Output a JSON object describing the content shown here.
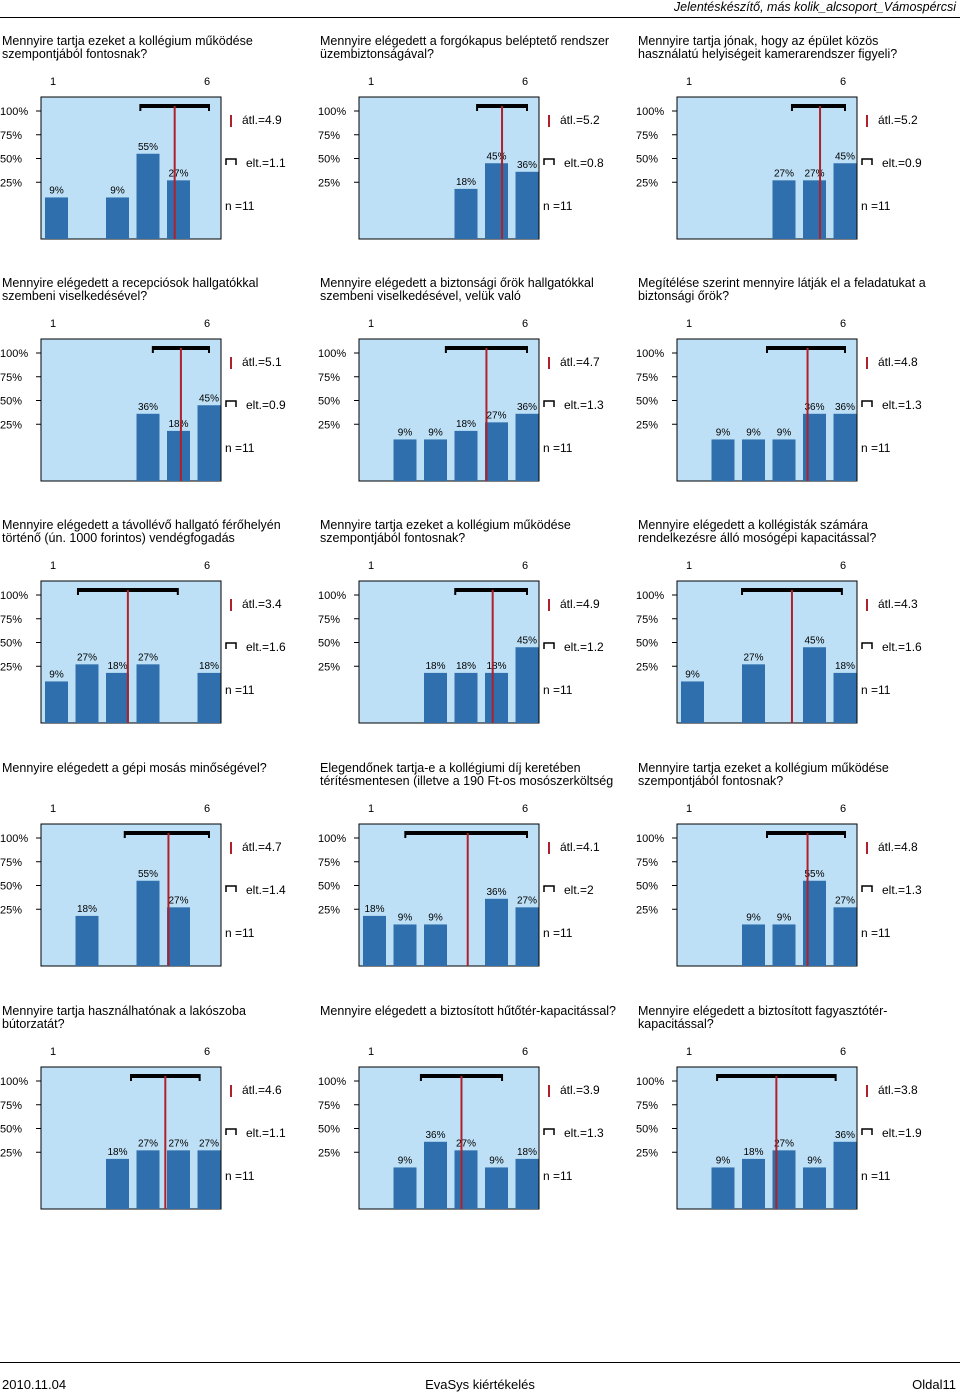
{
  "header": {
    "title": "Jelentéskészítő, más kolik_alcsoport_Vámospércsi"
  },
  "footer": {
    "date": "2010.11.04",
    "center": "EvaSys kiértékelés",
    "page": "Oldal11"
  },
  "scale": {
    "left": "1",
    "right": "6"
  },
  "y_ticks": [
    "100%",
    "75%",
    "50%",
    "25%"
  ],
  "colors": {
    "bar": "#2f6fad",
    "panel": "#bde0f6",
    "mean_line": "#b0202a"
  },
  "chart_data": [
    {
      "type": "bar",
      "title": "Mennyire tartja ezeket a kollégium működése szempontjából fontosnak?",
      "categories": [
        "1",
        "2",
        "3",
        "4",
        "5",
        "6"
      ],
      "values": [
        9,
        0,
        9,
        55,
        27,
        0
      ],
      "labels": [
        "9%",
        "",
        "9%",
        "55%",
        "27%",
        ""
      ],
      "mean": 4.9,
      "sd": 1.1,
      "mean_label": "átl.=4.9",
      "sd_label": "elt.=1.1",
      "n_label": "n =11",
      "ylim": [
        0,
        100
      ]
    },
    {
      "type": "bar",
      "title": "Mennyire elégedett a forgókapus beléptető rendszer üzembiztonságával?",
      "categories": [
        "1",
        "2",
        "3",
        "4",
        "5",
        "6"
      ],
      "values": [
        0,
        0,
        0,
        18,
        45,
        36
      ],
      "labels": [
        "",
        "",
        "",
        "18%",
        "45%",
        "36%"
      ],
      "mean": 5.2,
      "sd": 0.8,
      "mean_label": "átl.=5.2",
      "sd_label": "elt.=0.8",
      "n_label": "n =11",
      "ylim": [
        0,
        100
      ]
    },
    {
      "type": "bar",
      "title": "Mennyire tartja jónak, hogy az épület közös használatú helyiségeit kamerarendszer figyeli?",
      "categories": [
        "1",
        "2",
        "3",
        "4",
        "5",
        "6"
      ],
      "values": [
        0,
        0,
        0,
        27,
        27,
        45
      ],
      "labels": [
        "",
        "",
        "",
        "27%",
        "27%",
        "45%"
      ],
      "mean": 5.2,
      "sd": 0.9,
      "mean_label": "átl.=5.2",
      "sd_label": "elt.=0.9",
      "n_label": "n =11",
      "ylim": [
        0,
        100
      ]
    },
    {
      "type": "bar",
      "title": "Mennyire elégedett a recepciósok hallgatókkal szembeni viselkedésével?",
      "categories": [
        "1",
        "2",
        "3",
        "4",
        "5",
        "6"
      ],
      "values": [
        0,
        0,
        0,
        36,
        18,
        45
      ],
      "labels": [
        "",
        "",
        "",
        "36%",
        "18%",
        "45%"
      ],
      "mean": 5.1,
      "sd": 0.9,
      "mean_label": "átl.=5.1",
      "sd_label": "elt.=0.9",
      "n_label": "n =11",
      "ylim": [
        0,
        100
      ]
    },
    {
      "type": "bar",
      "title": "Mennyire elégedett a biztonsági őrök hallgatókkal szembeni viselkedésével, velük való",
      "categories": [
        "1",
        "2",
        "3",
        "4",
        "5",
        "6"
      ],
      "values": [
        0,
        9,
        9,
        18,
        27,
        36
      ],
      "labels": [
        "",
        "9%",
        "9%",
        "18%",
        "27%",
        "36%"
      ],
      "mean": 4.7,
      "sd": 1.3,
      "mean_label": "átl.=4.7",
      "sd_label": "elt.=1.3",
      "n_label": "n =11",
      "ylim": [
        0,
        100
      ]
    },
    {
      "type": "bar",
      "title": "Megítélése szerint mennyire látják el a feladatukat a biztonsági őrök?",
      "categories": [
        "1",
        "2",
        "3",
        "4",
        "5",
        "6"
      ],
      "values": [
        0,
        9,
        9,
        9,
        36,
        36
      ],
      "labels": [
        "",
        "9%",
        "9%",
        "9%",
        "36%",
        "36%"
      ],
      "mean": 4.8,
      "sd": 1.3,
      "mean_label": "átl.=4.8",
      "sd_label": "elt.=1.3",
      "n_label": "n =11",
      "ylim": [
        0,
        100
      ]
    },
    {
      "type": "bar",
      "title": "Mennyire elégedett a távollévő hallgató férőhelyén történő (ún. 1000 forintos) vendégfogadás",
      "categories": [
        "1",
        "2",
        "3",
        "4",
        "5",
        "6"
      ],
      "values": [
        9,
        27,
        18,
        27,
        0,
        18
      ],
      "labels": [
        "9%",
        "27%",
        "18%",
        "27%",
        "",
        "18%"
      ],
      "mean": 3.4,
      "sd": 1.6,
      "mean_label": "átl.=3.4",
      "sd_label": "elt.=1.6",
      "n_label": "n =11",
      "ylim": [
        0,
        100
      ]
    },
    {
      "type": "bar",
      "title": "Mennyire tartja ezeket a kollégium működése szempontjából fontosnak?",
      "categories": [
        "1",
        "2",
        "3",
        "4",
        "5",
        "6"
      ],
      "values": [
        0,
        0,
        18,
        18,
        18,
        45
      ],
      "labels": [
        "",
        "",
        "18%",
        "18%",
        "18%",
        "45%"
      ],
      "mean": 4.9,
      "sd": 1.2,
      "mean_label": "átl.=4.9",
      "sd_label": "elt.=1.2",
      "n_label": "n =11",
      "ylim": [
        0,
        100
      ]
    },
    {
      "type": "bar",
      "title": "Mennyire elégedett a kollégisták számára rendelkezésre álló mosógépi kapacitással?",
      "categories": [
        "1",
        "2",
        "3",
        "4",
        "5",
        "6"
      ],
      "values": [
        9,
        0,
        27,
        0,
        45,
        18
      ],
      "labels": [
        "9%",
        "",
        "27%",
        "",
        "45%",
        "18%"
      ],
      "mean": 4.3,
      "sd": 1.6,
      "mean_label": "átl.=4.3",
      "sd_label": "elt.=1.6",
      "n_label": "n =11",
      "ylim": [
        0,
        100
      ]
    },
    {
      "type": "bar",
      "title": "Mennyire elégedett a gépi mosás minőségével?",
      "categories": [
        "1",
        "2",
        "3",
        "4",
        "5",
        "6"
      ],
      "values": [
        0,
        18,
        0,
        55,
        27,
        0
      ],
      "labels": [
        "",
        "18%",
        "",
        "55%",
        "27%",
        ""
      ],
      "mean": 4.7,
      "sd": 1.4,
      "mean_label": "átl.=4.7",
      "sd_label": "elt.=1.4",
      "n_label": "n =11",
      "ylim": [
        0,
        100
      ]
    },
    {
      "type": "bar",
      "title": "Elegendőnek tartja-e a kollégiumi díj keretében térítésmentesen (illetve a 190 Ft-os mosószerköltség",
      "categories": [
        "1",
        "2",
        "3",
        "4",
        "5",
        "6"
      ],
      "values": [
        18,
        9,
        9,
        0,
        36,
        27
      ],
      "labels": [
        "18%",
        "9%",
        "9%",
        "",
        "36%",
        "27%"
      ],
      "mean": 4.1,
      "sd": 2,
      "mean_label": "átl.=4.1",
      "sd_label": "elt.=2",
      "n_label": "n =11",
      "ylim": [
        0,
        100
      ]
    },
    {
      "type": "bar",
      "title": "Mennyire tartja ezeket a kollégium működése szempontjából fontosnak?",
      "categories": [
        "1",
        "2",
        "3",
        "4",
        "5",
        "6"
      ],
      "values": [
        0,
        0,
        9,
        9,
        55,
        27
      ],
      "labels": [
        "",
        "",
        "9%",
        "9%",
        "55%",
        "27%"
      ],
      "mean": 4.8,
      "sd": 1.3,
      "mean_label": "átl.=4.8",
      "sd_label": "elt.=1.3",
      "n_label": "n =11",
      "ylim": [
        0,
        100
      ]
    },
    {
      "type": "bar",
      "title": "Mennyire tartja használhatónak a lakószoba bútorzatát?",
      "categories": [
        "1",
        "2",
        "3",
        "4",
        "5",
        "6"
      ],
      "values": [
        0,
        0,
        18,
        27,
        27,
        27
      ],
      "labels": [
        "",
        "",
        "18%",
        "27%",
        "27%",
        "27%"
      ],
      "mean": 4.6,
      "sd": 1.1,
      "mean_label": "átl.=4.6",
      "sd_label": "elt.=1.1",
      "n_label": "n =11",
      "ylim": [
        0,
        100
      ]
    },
    {
      "type": "bar",
      "title": "Mennyire elégedett a biztosított hűtőtér-kapacitással?",
      "categories": [
        "1",
        "2",
        "3",
        "4",
        "5",
        "6"
      ],
      "values": [
        0,
        9,
        36,
        27,
        9,
        18
      ],
      "labels": [
        "",
        "9%",
        "36%",
        "27%",
        "9%",
        "18%"
      ],
      "mean": 3.9,
      "sd": 1.3,
      "mean_label": "átl.=3.9",
      "sd_label": "elt.=1.3",
      "n_label": "n =11",
      "ylim": [
        0,
        100
      ]
    },
    {
      "type": "bar",
      "title": "Mennyire elégedett a biztosított fagyasztótér-kapacitással?",
      "categories": [
        "1",
        "2",
        "3",
        "4",
        "5",
        "6"
      ],
      "values": [
        0,
        9,
        18,
        27,
        9,
        36
      ],
      "labels": [
        "",
        "9%",
        "18%",
        "27%",
        "9%",
        "36%"
      ],
      "mean": 3.8,
      "sd": 1.9,
      "mean_label": "átl.=3.8",
      "sd_label": "elt.=1.9",
      "n_label": "n =11",
      "ylim": [
        0,
        100
      ]
    }
  ]
}
